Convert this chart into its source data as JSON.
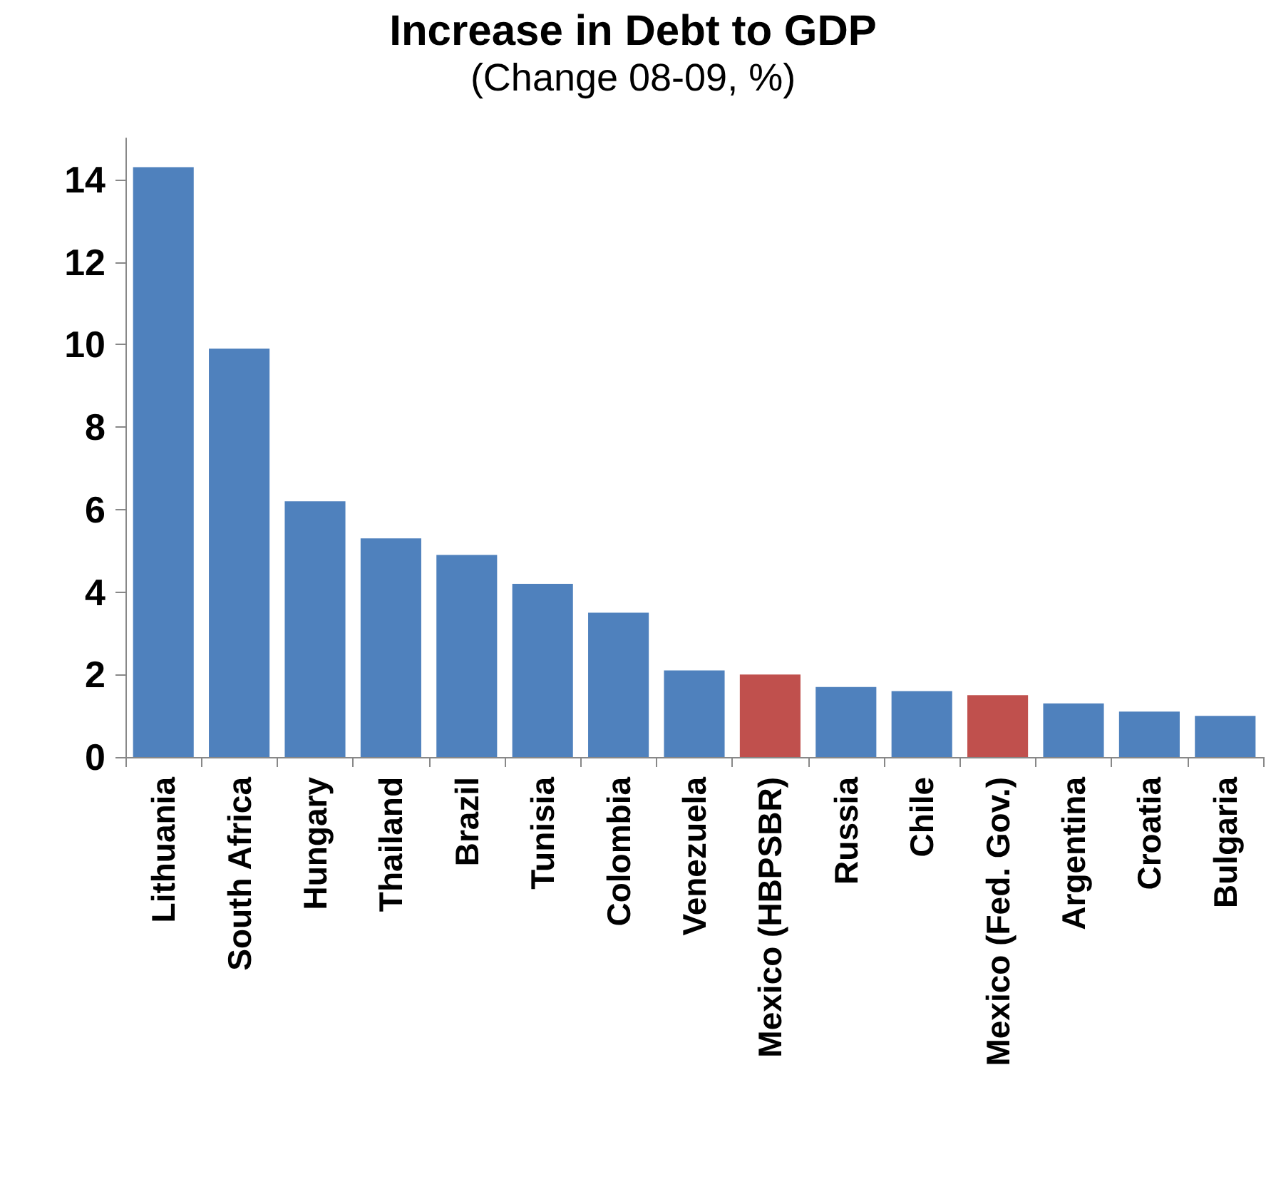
{
  "chart_data": {
    "type": "bar",
    "title": "Increase in Debt to GDP",
    "subtitle": "(Change 08-09, %)",
    "categories": [
      "Lithuania",
      "South Africa",
      "Hungary",
      "Thailand",
      "Brazil",
      "Tunisia",
      "Colombia",
      "Venezuela",
      "Mexico (HBPSBR)",
      "Russia",
      "Chile",
      "Mexico (Fed. Gov.)",
      "Argentina",
      "Croatia",
      "Bulgaria"
    ],
    "values": [
      14.3,
      9.9,
      6.2,
      5.3,
      4.9,
      4.2,
      3.5,
      2.1,
      2.0,
      1.7,
      1.6,
      1.5,
      1.3,
      1.1,
      1.0
    ],
    "colors": [
      "#4f81bd",
      "#4f81bd",
      "#4f81bd",
      "#4f81bd",
      "#4f81bd",
      "#4f81bd",
      "#4f81bd",
      "#4f81bd",
      "#c0504d",
      "#4f81bd",
      "#4f81bd",
      "#c0504d",
      "#4f81bd",
      "#4f81bd",
      "#4f81bd"
    ],
    "ylim": [
      0,
      15
    ],
    "yticks": [
      0,
      2,
      4,
      6,
      8,
      10,
      12,
      14
    ],
    "grid": false
  }
}
